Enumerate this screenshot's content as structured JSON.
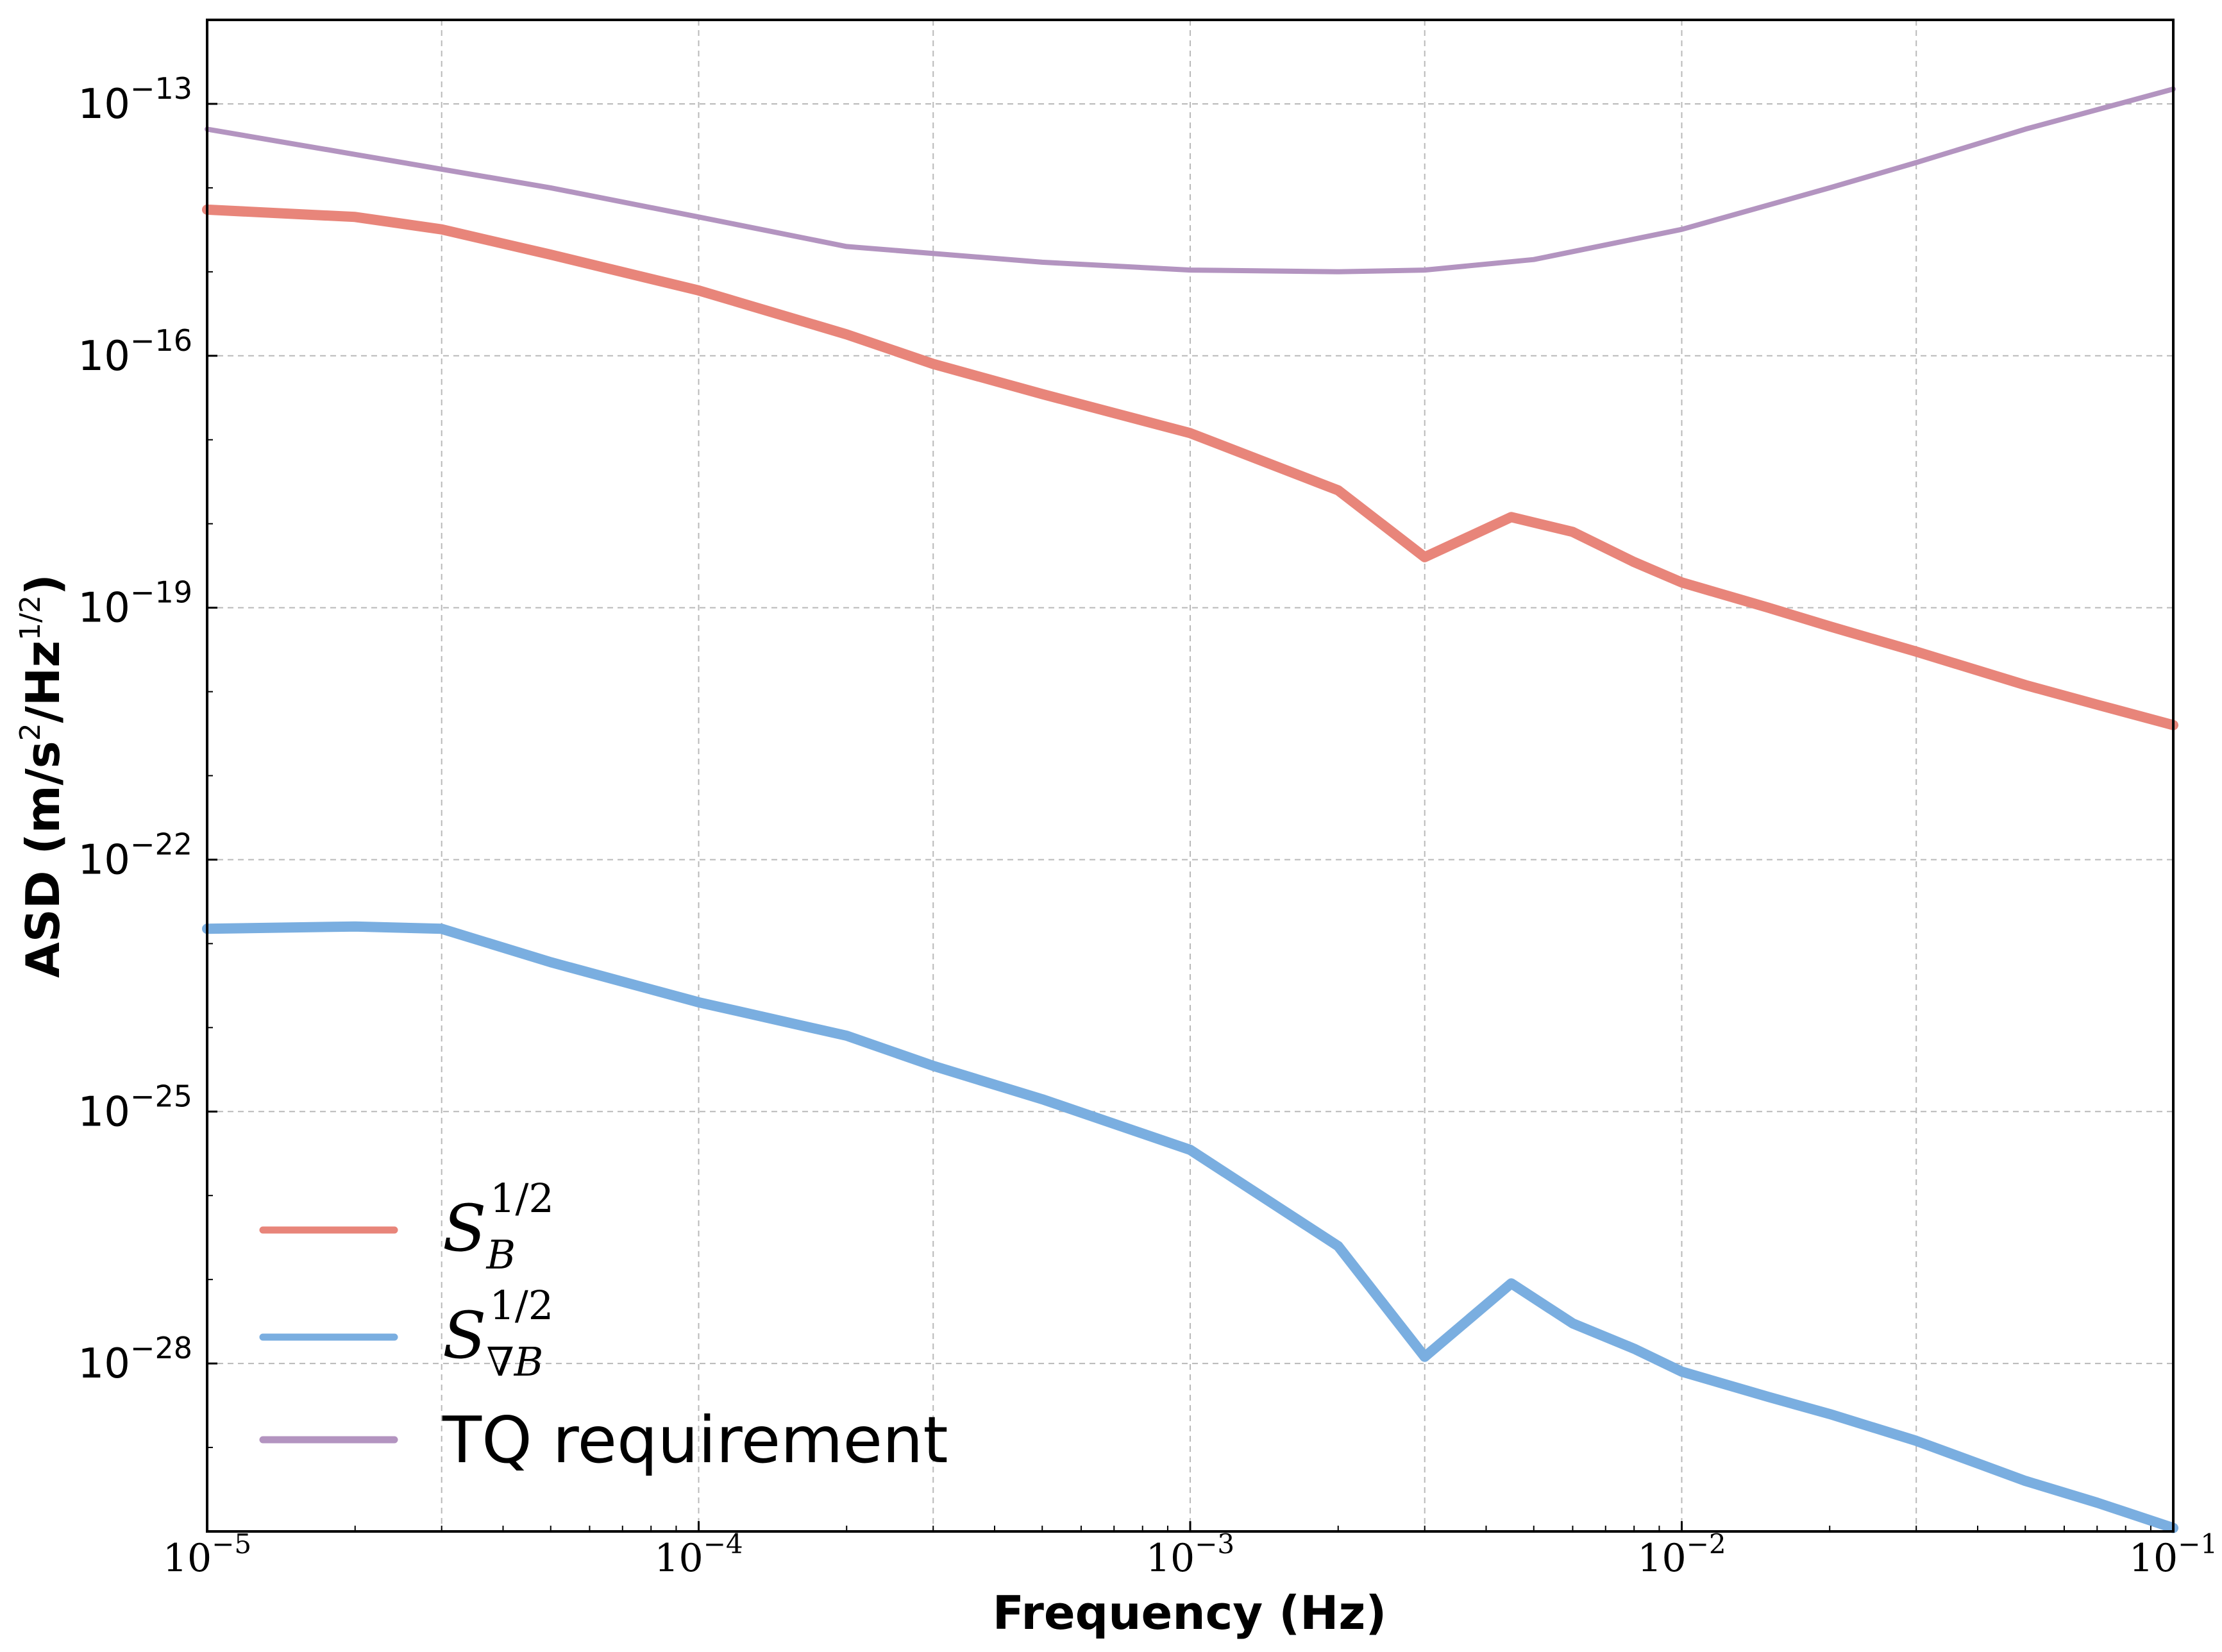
{
  "chart_data": {
    "type": "line",
    "title": "",
    "xlabel": "Frequency (Hz)",
    "ylabel_parts": [
      "ASD (m/s",
      "2",
      "/Hz",
      "1/2",
      ")"
    ],
    "xscale": "log",
    "yscale": "log",
    "xlim": [
      1e-05,
      0.1
    ],
    "ylim": [
      1e-30,
      1e-12
    ],
    "grid": true,
    "legend_position": "lower-left",
    "x_ticks": [
      {
        "base": "10",
        "exp": "−5",
        "value": 1e-05
      },
      {
        "base": "10",
        "exp": "−4",
        "value": 0.0001
      },
      {
        "base": "10",
        "exp": "−3",
        "value": 0.001
      },
      {
        "base": "10",
        "exp": "−2",
        "value": 0.01
      },
      {
        "base": "10",
        "exp": "−1",
        "value": 0.1
      }
    ],
    "y_ticks": [
      {
        "base": "10",
        "exp": "−13",
        "value": 1e-13
      },
      {
        "base": "10",
        "exp": "−16",
        "value": 1e-16
      },
      {
        "base": "10",
        "exp": "−19",
        "value": 1e-19
      },
      {
        "base": "10",
        "exp": "−22",
        "value": 1e-22
      },
      {
        "base": "10",
        "exp": "−25",
        "value": 1e-25
      },
      {
        "base": "10",
        "exp": "−28",
        "value": 1e-28
      }
    ],
    "series": [
      {
        "name": "S_B^{1/2}",
        "legend": {
          "base": "S",
          "sub": "B",
          "sup": "1/2"
        },
        "color": "#e8857a",
        "x": [
          1e-05,
          2e-05,
          3e-05,
          5e-05,
          0.0001,
          0.0002,
          0.0003,
          0.0005,
          0.001,
          0.002,
          0.003,
          0.0045,
          0.006,
          0.008,
          0.01,
          0.015,
          0.02,
          0.03,
          0.05,
          0.07,
          0.1
        ],
        "y": [
          5.5e-15,
          4.5e-15,
          3.2e-15,
          1.6e-15,
          6e-16,
          1.8e-16,
          8e-17,
          3.5e-17,
          1.2e-17,
          2.5e-18,
          4e-19,
          1.2e-18,
          8e-19,
          3.5e-19,
          2e-19,
          1e-19,
          6e-20,
          3e-20,
          1.2e-20,
          7e-21,
          4e-21
        ]
      },
      {
        "name": "S_∇B^{1/2}",
        "legend": {
          "base": "S",
          "sub": "∇B",
          "sup": "1/2"
        },
        "color": "#7aaee0",
        "x": [
          1e-05,
          2e-05,
          3e-05,
          5e-05,
          0.0001,
          0.0002,
          0.0003,
          0.0005,
          0.001,
          0.002,
          0.003,
          0.0045,
          0.006,
          0.008,
          0.01,
          0.015,
          0.02,
          0.03,
          0.05,
          0.07,
          0.1
        ],
        "y": [
          1.5e-23,
          1.6e-23,
          1.5e-23,
          6e-24,
          2e-24,
          8e-25,
          3.5e-25,
          1.4e-25,
          3.5e-26,
          2.5e-27,
          1.2e-28,
          9e-28,
          3e-28,
          1.5e-28,
          8e-29,
          4e-29,
          2.5e-29,
          1.2e-29,
          4e-30,
          2.2e-30,
          1.1e-30
        ]
      },
      {
        "name": "TQ requirement",
        "legend": {
          "text": "TQ requirement"
        },
        "color": "#b394c0",
        "x": [
          1e-05,
          2e-05,
          5e-05,
          0.0001,
          0.0002,
          0.0005,
          0.001,
          0.002,
          0.003,
          0.005,
          0.01,
          0.02,
          0.03,
          0.05,
          0.1
        ],
        "y": [
          5e-14,
          2.5e-14,
          1e-14,
          4.5e-15,
          2e-15,
          1.3e-15,
          1.05e-15,
          1e-15,
          1.05e-15,
          1.4e-15,
          3.2e-15,
          1e-14,
          2e-14,
          5e-14,
          1.5e-13
        ]
      }
    ]
  }
}
